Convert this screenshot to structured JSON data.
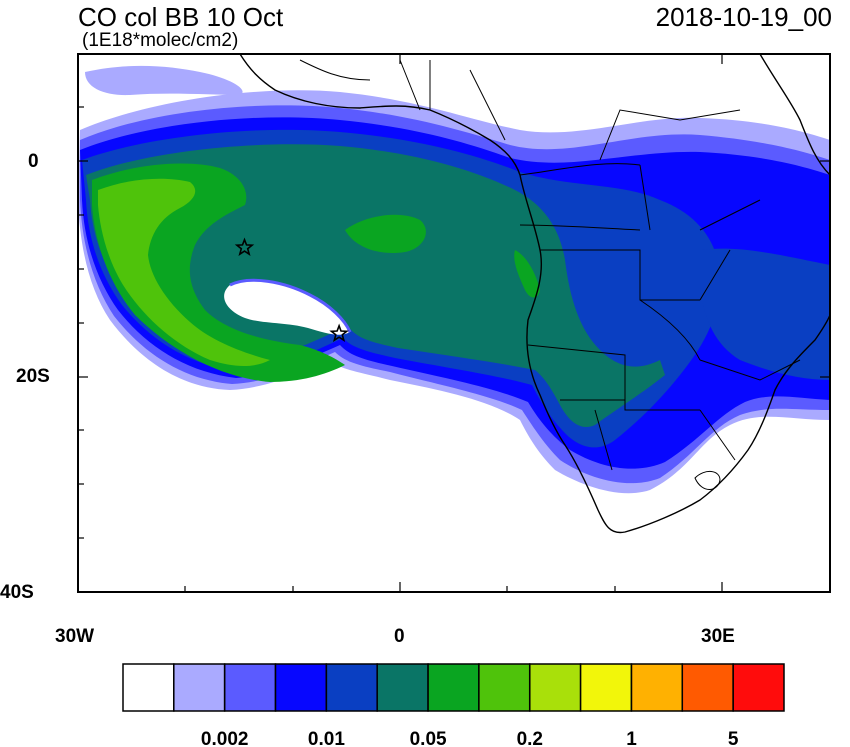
{
  "title": "CO col BB 10 Oct",
  "units": "(1E18*molec/cm2)",
  "timestamp": "2018-10-19_00",
  "axes": {
    "y_labels": [
      {
        "text": "0",
        "lat": 0
      },
      {
        "text": "20S",
        "lat": -20
      },
      {
        "text": "40S",
        "lat": -40
      }
    ],
    "x_labels": [
      {
        "text": "30W",
        "lon": -30
      },
      {
        "text": "0",
        "lon": 0
      },
      {
        "text": "30E",
        "lon": 30
      }
    ],
    "lon_range": [
      -30,
      40
    ],
    "lat_range": [
      -40,
      10
    ]
  },
  "markers": [
    {
      "name": "star-1",
      "lon": -14.5,
      "lat": -8
    },
    {
      "name": "star-2",
      "lon": -5.7,
      "lat": -16
    }
  ],
  "legend": {
    "colors": [
      "#ffffff",
      "#aaaaff",
      "#5b5bff",
      "#0707ff",
      "#0a3fc2",
      "#0a7566",
      "#0aa521",
      "#4fc30b",
      "#a9e00a",
      "#f2f60a",
      "#ffb101",
      "#ff5a01",
      "#ff0c0c"
    ],
    "labels": [
      "0.002",
      "0.01",
      "0.05",
      "0.2",
      "1",
      "5"
    ]
  },
  "colors": {
    "ocean": "#ffffff",
    "frame": "#000000"
  }
}
